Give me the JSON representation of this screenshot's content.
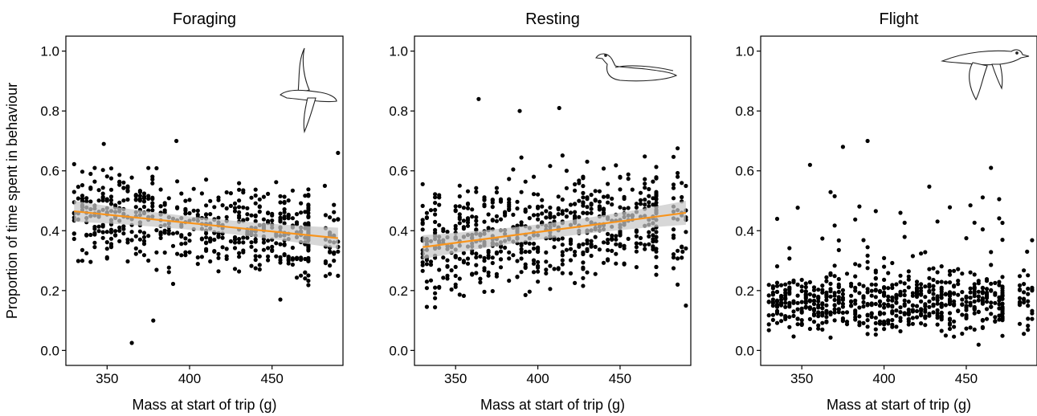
{
  "figure": {
    "ylabel": "Proportion of time spent in behaviour",
    "xlabel": "Mass at start of trip (g)"
  },
  "colors": {
    "points": "#000000",
    "trend": "#f7941d",
    "ci_band": "#c8c8c8"
  },
  "chart_data": [
    {
      "type": "scatter",
      "title": "Foraging",
      "xlabel": "Mass at start of trip (g)",
      "ylabel": "Proportion of time spent in behaviour",
      "xlim": [
        325,
        493
      ],
      "ylim": [
        -0.05,
        1.05
      ],
      "xticks": [
        350,
        400,
        450
      ],
      "yticks": [
        0.0,
        0.2,
        0.4,
        0.6,
        0.8,
        1.0
      ],
      "ytick_labels": [
        "0.0",
        "0.2",
        "0.4",
        "0.6",
        "0.8",
        "1.0"
      ],
      "grid": false,
      "icon": "flying-seabird-icon",
      "trend": {
        "x": [
          330,
          490
        ],
        "y": [
          0.465,
          0.375
        ],
        "ci": 0.035
      },
      "points": {
        "x_range": [
          330,
          490
        ],
        "y_center": [
          0.465,
          0.375
        ],
        "y_spread": 0.14,
        "y_min": 0.1,
        "y_max": 0.7,
        "count": 620,
        "extra": [
          [
            365,
            0.025
          ],
          [
            378,
            0.1
          ],
          [
            392,
            0.7
          ],
          [
            348,
            0.69
          ],
          [
            490,
            0.66
          ],
          [
            482,
            0.55
          ],
          [
            455,
            0.17
          ]
        ]
      }
    },
    {
      "type": "scatter",
      "title": "Resting",
      "xlabel": "Mass at start of trip (g)",
      "ylabel": "",
      "xlim": [
        325,
        493
      ],
      "ylim": [
        -0.05,
        1.05
      ],
      "xticks": [
        350,
        400,
        450
      ],
      "yticks": [
        0.0,
        0.2,
        0.4,
        0.6,
        0.8,
        1.0
      ],
      "ytick_labels": [
        "0.0",
        "0.2",
        "0.4",
        "0.6",
        "0.8",
        "1.0"
      ],
      "grid": false,
      "icon": "resting-seabird-icon",
      "trend": {
        "x": [
          330,
          490
        ],
        "y": [
          0.345,
          0.46
        ],
        "ci": 0.04
      },
      "points": {
        "x_range": [
          330,
          490
        ],
        "y_center": [
          0.345,
          0.46
        ],
        "y_spread": 0.18,
        "y_min": 0.03,
        "y_max": 0.78,
        "count": 700,
        "extra": [
          [
            364,
            0.84
          ],
          [
            413,
            0.81
          ],
          [
            389,
            0.8
          ],
          [
            490,
            0.15
          ],
          [
            488,
            0.33
          ],
          [
            485,
            0.22
          ]
        ]
      }
    },
    {
      "type": "scatter",
      "title": "Flight",
      "xlabel": "Mass at start of trip (g)",
      "ylabel": "",
      "xlim": [
        325,
        493
      ],
      "ylim": [
        -0.05,
        1.05
      ],
      "xticks": [
        350,
        400,
        450
      ],
      "yticks": [
        0.0,
        0.2,
        0.4,
        0.6,
        0.8,
        1.0
      ],
      "ytick_labels": [
        "0.0",
        "0.2",
        "0.4",
        "0.6",
        "0.8",
        "1.0"
      ],
      "grid": false,
      "icon": "gliding-seabird-icon",
      "trend": null,
      "points": {
        "x_range": [
          330,
          490
        ],
        "y_center": [
          0.16,
          0.16
        ],
        "y_spread": 0.1,
        "y_min": 0.01,
        "y_max": 0.65,
        "count": 700,
        "extra": [
          [
            375,
            0.68
          ],
          [
            390,
            0.7
          ],
          [
            465,
            0.61
          ],
          [
            355,
            0.62
          ],
          [
            490,
            0.2
          ],
          [
            487,
            0.33
          ]
        ]
      }
    }
  ]
}
